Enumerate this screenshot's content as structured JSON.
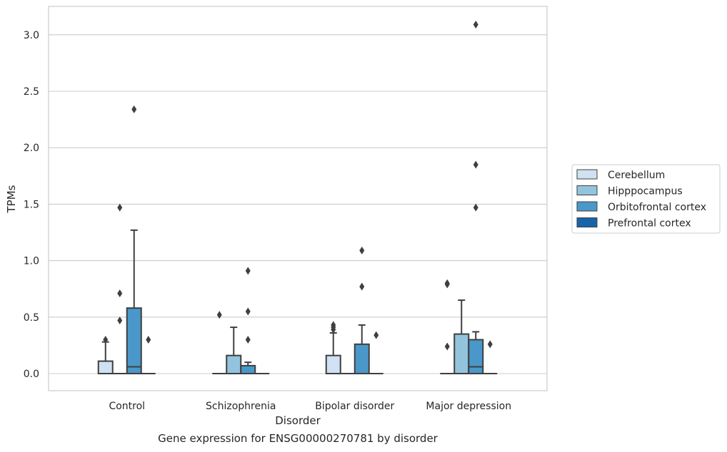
{
  "caption": "Gene expression for ENSG00000270781 by disorder",
  "chart_data": {
    "type": "box",
    "xlabel": "Disorder",
    "ylabel": "TPMs",
    "ylim": [
      -0.15,
      3.25
    ],
    "yticks": [
      "0.0",
      "0.5",
      "1.0",
      "1.5",
      "2.0",
      "2.5",
      "3.0"
    ],
    "grid": "horizontal",
    "legend_position": "right",
    "categories": [
      "Control",
      "Schizophrenia",
      "Bipolar disorder",
      "Major depression"
    ],
    "series": [
      {
        "name": "Cerebellum",
        "color": "#cfe1f2",
        "boxes": [
          {
            "q1": 0,
            "median": 0,
            "q3": 0.11,
            "whisker_low": 0,
            "whisker_high": 0.28,
            "outliers": [
              0.3
            ]
          },
          {
            "q1": 0,
            "median": 0,
            "q3": 0,
            "whisker_low": 0,
            "whisker_high": 0,
            "outliers": [
              0.52
            ]
          },
          {
            "q1": 0,
            "median": 0,
            "q3": 0.16,
            "whisker_low": 0,
            "whisker_high": 0.36,
            "outliers": [
              0.39,
              0.41,
              0.43
            ]
          },
          {
            "q1": 0,
            "median": 0,
            "q3": 0,
            "whisker_low": 0,
            "whisker_high": 0,
            "outliers": [
              0.24,
              0.79,
              0.8
            ]
          }
        ]
      },
      {
        "name": "Hipppocampus",
        "color": "#93c4de",
        "boxes": [
          {
            "q1": 0,
            "median": 0,
            "q3": 0,
            "whisker_low": 0,
            "whisker_high": 0,
            "outliers": [
              0.47,
              0.71,
              1.47
            ]
          },
          {
            "q1": 0,
            "median": 0,
            "q3": 0.16,
            "whisker_low": 0,
            "whisker_high": 0.41,
            "outliers": []
          },
          {
            "q1": 0,
            "median": 0,
            "q3": 0,
            "whisker_low": 0,
            "whisker_high": 0,
            "outliers": []
          },
          {
            "q1": 0,
            "median": 0,
            "q3": 0.35,
            "whisker_low": 0,
            "whisker_high": 0.65,
            "outliers": []
          }
        ]
      },
      {
        "name": "Orbitofrontal cortex",
        "color": "#4a98c9",
        "boxes": [
          {
            "q1": 0,
            "median": 0.06,
            "q3": 0.58,
            "whisker_low": 0,
            "whisker_high": 1.27,
            "outliers": [
              2.34
            ]
          },
          {
            "q1": 0,
            "median": 0,
            "q3": 0.07,
            "whisker_low": 0,
            "whisker_high": 0.1,
            "outliers": [
              0.3,
              0.55,
              0.91
            ]
          },
          {
            "q1": 0,
            "median": 0,
            "q3": 0.26,
            "whisker_low": 0,
            "whisker_high": 0.43,
            "outliers": [
              0.77,
              1.09
            ]
          },
          {
            "q1": 0,
            "median": 0.06,
            "q3": 0.3,
            "whisker_low": 0,
            "whisker_high": 0.37,
            "outliers": [
              1.47,
              1.85,
              3.09
            ]
          }
        ]
      },
      {
        "name": "Prefrontal cortex",
        "color": "#1764ab",
        "boxes": [
          {
            "q1": 0,
            "median": 0,
            "q3": 0,
            "whisker_low": 0,
            "whisker_high": 0,
            "outliers": [
              0.3
            ]
          },
          {
            "q1": 0,
            "median": 0,
            "q3": 0,
            "whisker_low": 0,
            "whisker_high": 0,
            "outliers": []
          },
          {
            "q1": 0,
            "median": 0,
            "q3": 0,
            "whisker_low": 0,
            "whisker_high": 0,
            "outliers": [
              0.34
            ]
          },
          {
            "q1": 0,
            "median": 0,
            "q3": 0,
            "whisker_low": 0,
            "whisker_high": 0,
            "outliers": [
              0.26
            ]
          }
        ]
      }
    ]
  }
}
